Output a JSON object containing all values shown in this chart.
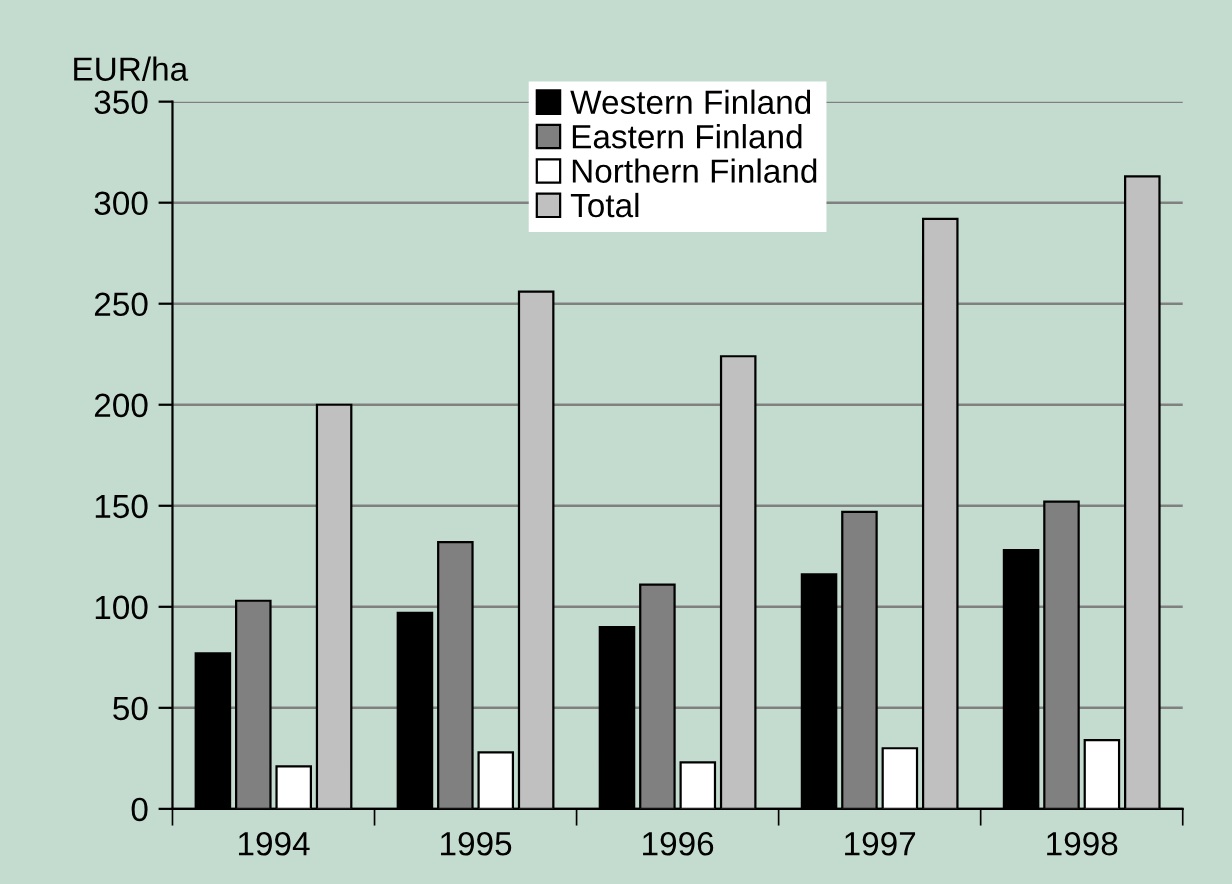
{
  "chart_data": {
    "type": "bar",
    "ylabel": "EUR/ha",
    "categories": [
      "1994",
      "1995",
      "1996",
      "1997",
      "1998"
    ],
    "series": [
      {
        "name": "Western Finland",
        "color": "#000000",
        "values": [
          77,
          97,
          90,
          116,
          128
        ]
      },
      {
        "name": "Eastern Finland",
        "color": "#808080",
        "values": [
          103,
          132,
          111,
          147,
          152
        ]
      },
      {
        "name": "Northern Finland",
        "color": "#ffffff",
        "values": [
          21,
          28,
          23,
          30,
          34
        ]
      },
      {
        "name": "Total",
        "color": "#c0c0c0",
        "values": [
          200,
          256,
          224,
          292,
          313
        ]
      }
    ],
    "ylim": [
      0,
      350
    ],
    "yticks": [
      0,
      50,
      100,
      150,
      200,
      250,
      300,
      350
    ],
    "grid": "y",
    "legend": "top"
  }
}
